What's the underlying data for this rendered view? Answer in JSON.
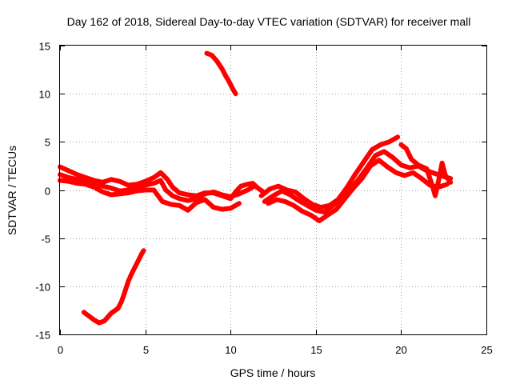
{
  "chart_data": {
    "type": "line",
    "title": "Day 162 of 2018, Sidereal Day-to-day VTEC variation (SDTVAR) for receiver mall",
    "xlabel": "GPS time / hours",
    "ylabel": "SDTVAR / TECUs",
    "xlim": [
      0,
      25
    ],
    "ylim": [
      -15,
      15
    ],
    "xticks": [
      0,
      5,
      10,
      15,
      20,
      25
    ],
    "yticks": [
      -15,
      -10,
      -5,
      0,
      5,
      10,
      15
    ],
    "xtick_labels": [
      "0",
      "5",
      "10",
      "15",
      "20",
      "25"
    ],
    "ytick_labels": [
      "-15",
      "-10",
      "-5",
      "0",
      "5",
      "10",
      "15"
    ],
    "grid": true,
    "legend": "none",
    "color": "#ff0000",
    "series": [
      {
        "name": "band-upper",
        "x": [
          0.0,
          0.5,
          1.0,
          1.5,
          2.0,
          2.5,
          3.0,
          3.5,
          4.0,
          4.5,
          5.0,
          5.5,
          5.9,
          6.3,
          6.6,
          7.0,
          7.5,
          8.0,
          8.5,
          9.0,
          9.5,
          10.0,
          10.3,
          10.6,
          11.0,
          11.3,
          11.6,
          12.0
        ],
        "y": [
          2.4,
          2.0,
          1.6,
          1.3,
          1.0,
          0.8,
          1.1,
          0.9,
          0.5,
          0.6,
          0.9,
          1.3,
          1.8,
          1.1,
          0.3,
          -0.3,
          -0.5,
          -0.6,
          -0.3,
          -0.3,
          -0.6,
          -0.9,
          -0.2,
          0.4,
          0.6,
          0.7,
          0.2,
          -0.3
        ]
      },
      {
        "name": "band-middle",
        "x": [
          0.0,
          0.5,
          1.0,
          1.5,
          2.0,
          2.5,
          3.0,
          3.5,
          4.0,
          4.5,
          5.0,
          5.5,
          5.9,
          6.2,
          6.6,
          7.0,
          7.5,
          8.0,
          8.5,
          9.0,
          9.5,
          10.0,
          10.5,
          11.0,
          11.3
        ],
        "y": [
          1.6,
          1.3,
          1.1,
          0.9,
          0.7,
          0.4,
          0.2,
          -0.1,
          0.0,
          0.3,
          0.5,
          0.7,
          1.0,
          0.0,
          -0.6,
          -0.9,
          -1.1,
          -0.9,
          -0.4,
          -0.2,
          -0.5,
          -0.7,
          -0.4,
          0.0,
          0.3
        ]
      },
      {
        "name": "band-lower",
        "x": [
          0.0,
          0.5,
          1.0,
          1.5,
          2.0,
          2.5,
          3.0,
          3.5,
          4.0,
          4.5,
          5.0,
          5.5,
          6.0,
          6.5,
          7.0,
          7.5,
          8.0,
          8.5,
          9.0,
          9.5,
          10.0,
          10.5
        ],
        "y": [
          1.0,
          0.9,
          0.7,
          0.6,
          0.3,
          -0.2,
          -0.5,
          -0.4,
          -0.3,
          -0.1,
          0.0,
          0.0,
          -1.2,
          -1.5,
          -1.6,
          -2.1,
          -1.3,
          -1.0,
          -1.8,
          -2.0,
          -1.9,
          -1.4
        ]
      },
      {
        "name": "afternoon-upper",
        "x": [
          11.8,
          12.3,
          12.8,
          13.3,
          13.8,
          14.3,
          14.8,
          15.3,
          15.8,
          16.3,
          16.8,
          17.3,
          17.8,
          18.3,
          18.8,
          19.3,
          19.8
        ],
        "y": [
          -0.6,
          0.1,
          0.4,
          0.0,
          -0.2,
          -0.9,
          -1.5,
          -1.8,
          -1.6,
          -1.0,
          0.2,
          1.6,
          2.9,
          4.2,
          4.7,
          5.0,
          5.5
        ]
      },
      {
        "name": "afternoon-middle",
        "x": [
          12.0,
          12.5,
          13.0,
          13.5,
          14.0,
          14.5,
          15.0,
          15.5,
          16.0,
          16.5,
          17.0,
          17.5,
          18.0,
          18.5,
          19.0,
          19.5,
          20.0,
          20.5,
          21.0,
          21.5,
          22.0,
          22.5,
          22.9
        ],
        "y": [
          -1.2,
          -0.6,
          -0.1,
          -0.5,
          -1.1,
          -1.6,
          -2.1,
          -2.3,
          -1.6,
          -0.8,
          0.0,
          1.1,
          2.3,
          3.6,
          4.0,
          3.4,
          2.6,
          2.3,
          2.5,
          2.0,
          1.7,
          1.4,
          1.2
        ]
      },
      {
        "name": "afternoon-lower",
        "x": [
          12.2,
          12.7,
          13.2,
          13.7,
          14.2,
          14.7,
          15.2,
          15.7,
          16.2,
          16.7,
          17.2,
          17.7,
          18.2,
          18.7,
          19.2,
          19.7,
          20.2,
          20.7,
          21.2,
          21.7,
          22.2,
          22.7
        ],
        "y": [
          -1.4,
          -1.0,
          -1.2,
          -1.6,
          -2.2,
          -2.6,
          -3.2,
          -2.6,
          -2.0,
          -0.9,
          0.2,
          1.2,
          2.5,
          3.1,
          2.4,
          1.8,
          1.5,
          1.8,
          1.2,
          0.5,
          0.3,
          0.6
        ]
      },
      {
        "name": "evening-spike",
        "x": [
          20.0,
          20.3,
          20.6,
          21.0,
          21.5,
          21.8,
          22.0,
          22.2,
          22.4,
          22.6,
          22.9
        ],
        "y": [
          4.7,
          4.3,
          3.2,
          2.6,
          2.2,
          0.6,
          -0.6,
          1.0,
          2.8,
          1.5,
          0.8
        ]
      },
      {
        "name": "lower-arc",
        "x": [
          1.4,
          1.7,
          2.0,
          2.3,
          2.6,
          3.0,
          3.4,
          3.6,
          3.8,
          4.0,
          4.2,
          4.4,
          4.6,
          4.8,
          4.9
        ],
        "y": [
          -12.7,
          -13.1,
          -13.5,
          -13.8,
          -13.6,
          -12.8,
          -12.3,
          -11.6,
          -10.6,
          -9.5,
          -8.7,
          -8.0,
          -7.3,
          -6.6,
          -6.3
        ]
      },
      {
        "name": "upper-arc",
        "x": [
          8.6,
          8.9,
          9.2,
          9.5,
          9.7,
          9.9,
          10.1,
          10.3
        ],
        "y": [
          14.2,
          14.0,
          13.4,
          12.6,
          11.9,
          11.3,
          10.6,
          10.0
        ]
      }
    ]
  }
}
